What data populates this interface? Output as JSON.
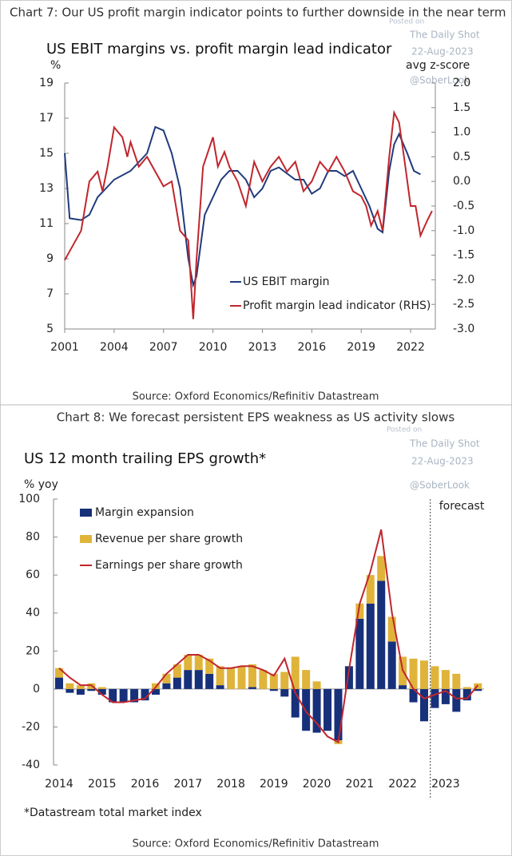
{
  "chart_data": [
    {
      "type": "line",
      "title": "Chart 7: Our US profit margin indicator points to further downside in the near term",
      "subtitle": "US EBIT margins vs. profit margin lead indicator",
      "y_label": "%",
      "y2_label": "avg z-score",
      "source": "Source: Oxford Economics/Refinitiv Datastream",
      "watermark": [
        "Posted on",
        "The Daily Shot",
        "22-Aug-2023",
        "@SoberLook"
      ],
      "xlim": [
        2001,
        2023.5
      ],
      "xticks": [
        2001,
        2004,
        2007,
        2010,
        2013,
        2016,
        2019,
        2022
      ],
      "ylim": [
        5,
        19
      ],
      "yticks": [
        5,
        7,
        9,
        11,
        13,
        15,
        17,
        19
      ],
      "y2lim": [
        -3,
        2
      ],
      "y2ticks": [
        {
          "value": -3,
          "label": "-3.0"
        },
        -2.5,
        {
          "value": -2,
          "label": "-2.0"
        },
        -1.5,
        {
          "value": -1,
          "label": "-1.0"
        },
        -0.5,
        {
          "value": 0,
          "label": "0.0"
        },
        0.5,
        {
          "value": 1,
          "label": "1.0"
        },
        1.5,
        {
          "value": 2,
          "label": "2.0"
        }
      ],
      "series": [
        {
          "name": "US EBIT margin",
          "color": "#1f3b7c",
          "x": [
            2001,
            2001.3,
            2002,
            2002.5,
            2003,
            2003.5,
            2004,
            2005,
            2005.5,
            2006,
            2006.5,
            2007,
            2007.5,
            2008,
            2008.5,
            2008.8,
            2009,
            2009.5,
            2010,
            2010.5,
            2011,
            2011.5,
            2012,
            2012.5,
            2013,
            2013.5,
            2014,
            2015,
            2015.5,
            2016,
            2016.5,
            2017,
            2017.5,
            2018,
            2018.5,
            2019,
            2019.5,
            2020,
            2020.3,
            2020.7,
            2021,
            2021.3,
            2021.8,
            2022.2,
            2022.6
          ],
          "values": [
            15,
            11.3,
            11.2,
            11.5,
            12.5,
            13,
            13.5,
            14,
            14.5,
            15,
            16.5,
            16.3,
            15,
            13,
            9,
            7.5,
            8,
            11.5,
            12.5,
            13.5,
            14,
            14,
            13.5,
            12.5,
            13,
            14,
            14.2,
            13.5,
            13.5,
            12.7,
            13,
            14,
            14,
            13.7,
            14,
            13,
            12,
            10.7,
            10.5,
            14,
            15.5,
            16.1,
            15,
            14,
            13.8
          ]
        },
        {
          "name": "Profit margin lead indicator (RHS)",
          "color": "#c0262d",
          "axis": "y2",
          "x": [
            2001,
            2001.5,
            2002,
            2002.5,
            2003,
            2003.3,
            2003.6,
            2004,
            2004.5,
            2004.8,
            2005,
            2005.5,
            2006,
            2006.5,
            2007,
            2007.5,
            2008,
            2008.5,
            2008.8,
            2009,
            2009.4,
            2010,
            2010.3,
            2010.7,
            2011,
            2011.5,
            2012,
            2012.5,
            2013,
            2013.5,
            2014,
            2014.5,
            2015,
            2015.5,
            2016,
            2016.5,
            2017,
            2017.5,
            2018,
            2018.5,
            2019,
            2019.3,
            2019.6,
            2020,
            2020.3,
            2020.7,
            2021,
            2021.3,
            2021.6,
            2022,
            2022.3,
            2022.6,
            2023,
            2023.3
          ],
          "values": [
            -1.6,
            -1.3,
            -1.0,
            0.0,
            0.2,
            -0.2,
            0.3,
            1.1,
            0.9,
            0.5,
            0.8,
            0.3,
            0.5,
            0.2,
            -0.1,
            0.0,
            -1.0,
            -1.2,
            -2.8,
            -1.6,
            0.3,
            0.9,
            0.3,
            0.6,
            0.3,
            0.0,
            -0.5,
            0.4,
            0.0,
            0.3,
            0.5,
            0.2,
            0.4,
            -0.2,
            0.0,
            0.4,
            0.2,
            0.5,
            0.2,
            -0.2,
            -0.3,
            -0.5,
            -0.9,
            -0.6,
            -1.0,
            0.5,
            1.4,
            1.2,
            0.5,
            -0.5,
            -0.5,
            -1.1,
            -0.8,
            -0.6
          ]
        }
      ]
    },
    {
      "type": "bar",
      "title": "Chart 8: We forecast persistent EPS weakness as US activity slows",
      "subtitle": "US 12 month trailing EPS growth*",
      "y_label": "% yoy",
      "annotation": "forecast",
      "footnote": "*Datastream total market index",
      "source": "Source: Oxford Economics/Refinitiv Datastream",
      "watermark": [
        "Posted on",
        "The Daily Shot",
        "22-Aug-2023",
        "@SoberLook"
      ],
      "categories": [
        "2014",
        null,
        null,
        null,
        "2015",
        null,
        null,
        null,
        "2016",
        null,
        null,
        null,
        "2017",
        null,
        null,
        null,
        "2018",
        null,
        null,
        null,
        "2019",
        null,
        null,
        null,
        "2020",
        null,
        null,
        null,
        "2021",
        null,
        null,
        null,
        "2022",
        null,
        null,
        null,
        "2023",
        null,
        null,
        null
      ],
      "ylim": [
        -40,
        100
      ],
      "yticks": [
        -40,
        -20,
        0,
        20,
        40,
        60,
        80,
        100
      ],
      "stacked": true,
      "series": [
        {
          "name": "Margin expansion",
          "color": "#17307a",
          "type": "bar",
          "values": [
            6,
            -2,
            -3,
            -1,
            -3,
            -7,
            -7,
            -7,
            -6,
            -3,
            3,
            6,
            10,
            10,
            8,
            2,
            0,
            0,
            1,
            0,
            -1,
            -4,
            -15,
            -22,
            -23,
            -22,
            -27,
            12,
            37,
            45,
            57,
            25,
            2,
            -7,
            -17,
            -10,
            -8,
            -12,
            -6,
            -1
          ]
        },
        {
          "name": "Revenue per share growth",
          "color": "#e0b43a",
          "type": "bar",
          "values": [
            5,
            3,
            2,
            3,
            1,
            0,
            0,
            0,
            0,
            3,
            5,
            7,
            8,
            8,
            8,
            10,
            11,
            12,
            12,
            10,
            8,
            9,
            17,
            10,
            4,
            0,
            -2,
            0,
            8,
            15,
            13,
            13,
            15,
            16,
            15,
            12,
            10,
            8,
            1,
            3
          ]
        },
        {
          "name": "Earnings per share growth",
          "color": "#c0262d",
          "type": "line",
          "values": [
            11,
            6,
            2,
            2,
            -3,
            -7,
            -7,
            -6,
            -5,
            1,
            8,
            13,
            18,
            18,
            15,
            11,
            11,
            12,
            12,
            10,
            7,
            16,
            -2,
            -12,
            -18,
            -25,
            -28,
            10,
            45,
            62,
            84,
            40,
            10,
            0,
            -5,
            -3,
            -1,
            -5,
            -5,
            2
          ]
        }
      ]
    }
  ]
}
